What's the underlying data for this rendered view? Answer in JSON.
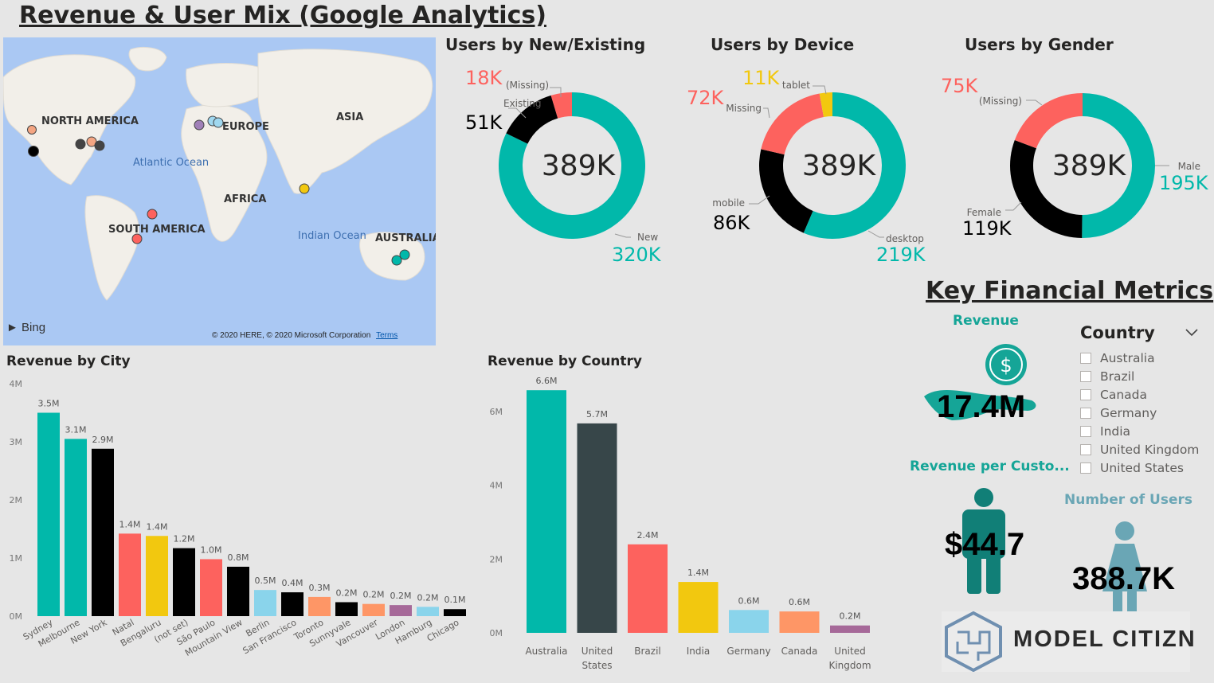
{
  "page": {
    "title": "Revenue & User Mix (Google Analytics)"
  },
  "colors": {
    "teal": "#01b8aa",
    "black": "#000000",
    "coral": "#fd625e",
    "yellow": "#f2c80f",
    "darkgray": "#374649",
    "skyblue": "#8ad4eb",
    "orange": "#fe9666",
    "purple": "#a66999"
  },
  "map": {
    "labels": [
      "NORTH AMERICA",
      "EUROPE",
      "ASIA",
      "AFRICA",
      "SOUTH AMERICA",
      "AUSTRALIA",
      "Atlantic Ocean",
      "Indian Ocean"
    ],
    "provider": "Bing",
    "copyright": "© 2020 HERE, © 2020 Microsoft Corporation",
    "terms": "Terms"
  },
  "donut_center": "389K",
  "icons": {
    "revenue": "dollar-hand-icon",
    "revenue_per_customer": "person-icon",
    "users": "woman-icon",
    "dropdown": "chevron-down-icon"
  },
  "kpi": {
    "section_title": "Key Financial Metrics",
    "revenue_label": "Revenue",
    "revenue_value": "17.4M",
    "rpc_label": "Revenue per Custo...",
    "rpc_value": "$44.7",
    "users_label": "Number of Users",
    "users_value": "388.7K"
  },
  "slicer": {
    "title": "Country",
    "options": [
      "Australia",
      "Brazil",
      "Canada",
      "Germany",
      "India",
      "United Kingdom",
      "United States"
    ]
  },
  "logo": {
    "text": "MODEL CITIZN"
  },
  "chart_data": [
    {
      "type": "donut",
      "title": "Users by New/Existing",
      "center_label": "389K",
      "slices": [
        {
          "name": "New",
          "label": "320K",
          "value": 320,
          "color": "#01b8aa"
        },
        {
          "name": "Existing",
          "label": "51K",
          "value": 51,
          "color": "#000000"
        },
        {
          "name": "(Missing)",
          "label": "18K",
          "value": 18,
          "color": "#fd625e"
        }
      ]
    },
    {
      "type": "donut",
      "title": "Users by Device",
      "center_label": "389K",
      "slices": [
        {
          "name": "desktop",
          "label": "219K",
          "value": 219,
          "color": "#01b8aa"
        },
        {
          "name": "mobile",
          "label": "86K",
          "value": 86,
          "color": "#000000"
        },
        {
          "name": "Missing",
          "label": "72K",
          "value": 72,
          "color": "#fd625e"
        },
        {
          "name": "tablet",
          "label": "11K",
          "value": 11,
          "color": "#f2c80f"
        }
      ]
    },
    {
      "type": "donut",
      "title": "Users by Gender",
      "center_label": "389K",
      "slices": [
        {
          "name": "Male",
          "label": "195K",
          "value": 195,
          "color": "#01b8aa"
        },
        {
          "name": "Female",
          "label": "119K",
          "value": 119,
          "color": "#000000"
        },
        {
          "name": "(Missing)",
          "label": "75K",
          "value": 75,
          "color": "#fd625e"
        }
      ]
    },
    {
      "type": "bar",
      "title": "Revenue by City",
      "yticks": [
        "0M",
        "1M",
        "2M",
        "3M",
        "4M"
      ],
      "ylim": [
        0,
        4
      ],
      "categories": [
        "Sydney",
        "Melbourne",
        "New York",
        "Natal",
        "Bengaluru",
        "(not set)",
        "São Paulo",
        "Mountain View",
        "Berlin",
        "San Francisco",
        "Toronto",
        "Sunnyvale",
        "Vancouver",
        "London",
        "Hamburg",
        "Chicago"
      ],
      "values": [
        3.5,
        3.05,
        2.88,
        1.42,
        1.38,
        1.17,
        0.98,
        0.85,
        0.45,
        0.41,
        0.33,
        0.24,
        0.21,
        0.19,
        0.16,
        0.12
      ],
      "labels": [
        "3.5M",
        "3.1M",
        "2.9M",
        "1.4M",
        "1.4M",
        "1.2M",
        "1.0M",
        "0.8M",
        "0.5M",
        "0.4M",
        "0.3M",
        "0.2M",
        "0.2M",
        "0.2M",
        "0.2M",
        "0.1M"
      ],
      "colors": [
        "#01b8aa",
        "#01b8aa",
        "#000000",
        "#fd625e",
        "#f2c80f",
        "#000000",
        "#fd625e",
        "#000000",
        "#8ad4eb",
        "#000000",
        "#fe9666",
        "#000000",
        "#fe9666",
        "#a66999",
        "#8ad4eb",
        "#000000"
      ]
    },
    {
      "type": "bar",
      "title": "Revenue by Country",
      "yticks": [
        "0M",
        "2M",
        "4M",
        "6M"
      ],
      "ylim": [
        0,
        6.8
      ],
      "categories": [
        "Australia",
        "United States",
        "Brazil",
        "India",
        "Germany",
        "Canada",
        "United Kingdom"
      ],
      "values": [
        6.58,
        5.68,
        2.4,
        1.38,
        0.62,
        0.58,
        0.2
      ],
      "labels": [
        "6.6M",
        "5.7M",
        "2.4M",
        "1.4M",
        "0.6M",
        "0.6M",
        "0.2M"
      ],
      "colors": [
        "#01b8aa",
        "#374649",
        "#fd625e",
        "#f2c80f",
        "#8ad4eb",
        "#fe9666",
        "#a66999"
      ]
    }
  ]
}
